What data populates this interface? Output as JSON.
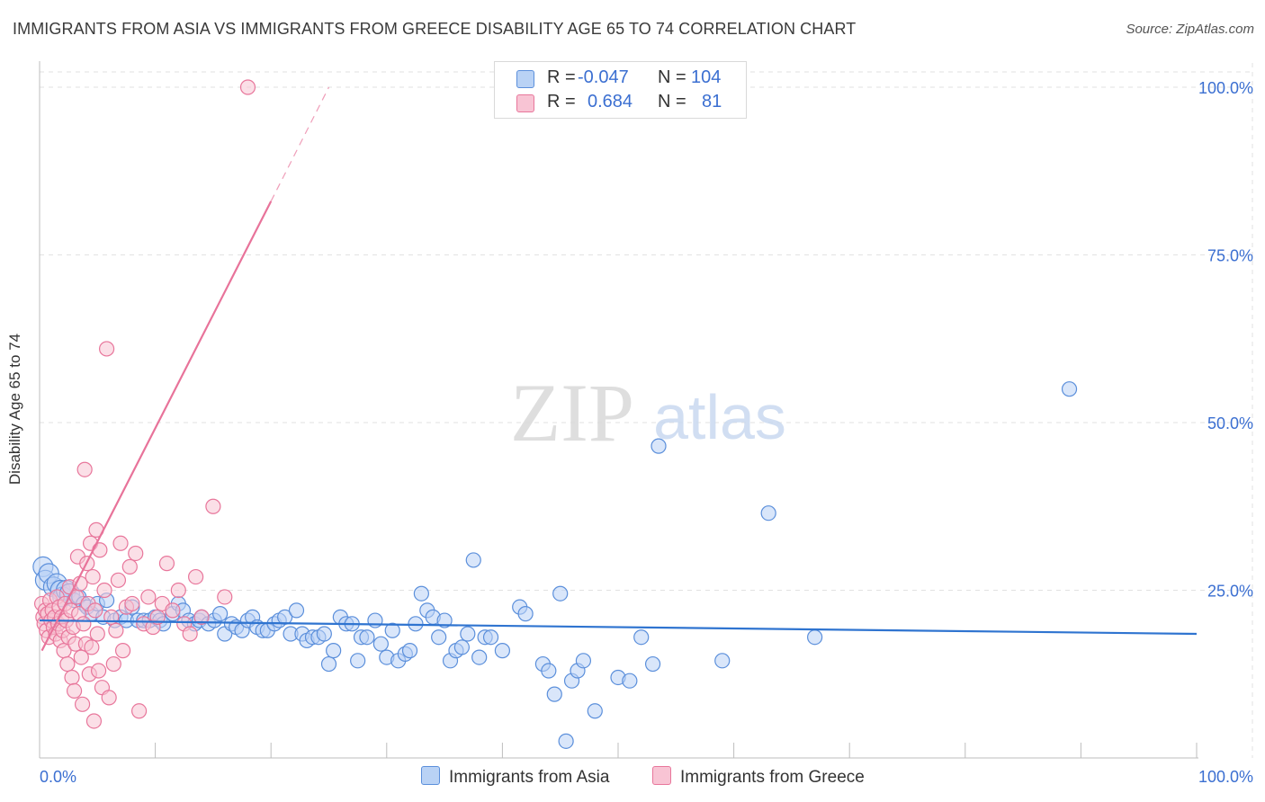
{
  "header": {
    "title": "IMMIGRANTS FROM ASIA VS IMMIGRANTS FROM GREECE DISABILITY AGE 65 TO 74 CORRELATION CHART",
    "source": "Source: ZipAtlas.com"
  },
  "colors": {
    "blue_fill": "#b9d2f5",
    "blue_stroke": "#5b8fdb",
    "blue_line": "#2f74d0",
    "pink_fill": "#f8c4d4",
    "pink_stroke": "#e8769b",
    "pink_line": "#e8739a",
    "grid": "#e2e2e2",
    "axis_text_blue": "#3b6fd1"
  },
  "legend": {
    "r_label": "R =",
    "n_label": "N =",
    "asia": {
      "r": "-0.047",
      "n": "104"
    },
    "greece": {
      "r": "0.684",
      "n": "81"
    }
  },
  "watermark": {
    "zip": "ZIP",
    "atlas": "atlas"
  },
  "chart_data": {
    "type": "scatter",
    "title": "IMMIGRANTS FROM ASIA VS IMMIGRANTS FROM GREECE DISABILITY AGE 65 TO 74 CORRELATION CHART",
    "xlabel": "",
    "ylabel": "Disability Age 65 to 74",
    "xlim": [
      0,
      100
    ],
    "ylim": [
      0,
      100
    ],
    "x_tick_labels": [
      "0.0%",
      "100.0%"
    ],
    "y_tick_labels": [
      "25.0%",
      "50.0%",
      "75.0%",
      "100.0%"
    ],
    "y_ticks": [
      25,
      50,
      75,
      100
    ],
    "legend_position": "bottom-center",
    "series": [
      {
        "name": "Immigrants from Asia",
        "color": "blue",
        "trend": {
          "x0": 0,
          "y0": 20.5,
          "x1": 100,
          "y1": 18.5
        },
        "points": [
          [
            0.3,
            28.5
          ],
          [
            0.5,
            26.5
          ],
          [
            0.8,
            27.5
          ],
          [
            1.2,
            25.5
          ],
          [
            1.5,
            26
          ],
          [
            1.8,
            25
          ],
          [
            2,
            24
          ],
          [
            2.3,
            25
          ],
          [
            2.6,
            24.5
          ],
          [
            3,
            23.5
          ],
          [
            3.4,
            24
          ],
          [
            3.8,
            23
          ],
          [
            4.1,
            22.5
          ],
          [
            4.5,
            21.5
          ],
          [
            5,
            23
          ],
          [
            5.5,
            21
          ],
          [
            5.8,
            23.5
          ],
          [
            6.5,
            20.5
          ],
          [
            7,
            21
          ],
          [
            7.5,
            20.5
          ],
          [
            8,
            22.5
          ],
          [
            8.5,
            20.5
          ],
          [
            9,
            20.5
          ],
          [
            9.5,
            20.5
          ],
          [
            10,
            21
          ],
          [
            10.4,
            20.5
          ],
          [
            10.7,
            20
          ],
          [
            11.5,
            21.5
          ],
          [
            12,
            23
          ],
          [
            12.4,
            22
          ],
          [
            12.9,
            20.5
          ],
          [
            13.4,
            20
          ],
          [
            13.8,
            20.5
          ],
          [
            14,
            21
          ],
          [
            14.6,
            20
          ],
          [
            15.1,
            20.5
          ],
          [
            15.6,
            21.5
          ],
          [
            16,
            18.5
          ],
          [
            16.6,
            20
          ],
          [
            17,
            19.5
          ],
          [
            17.5,
            19
          ],
          [
            18,
            20.5
          ],
          [
            18.4,
            21
          ],
          [
            18.8,
            19.5
          ],
          [
            19.3,
            19
          ],
          [
            19.7,
            19
          ],
          [
            20.3,
            20
          ],
          [
            20.7,
            20.5
          ],
          [
            21.2,
            21
          ],
          [
            21.7,
            18.5
          ],
          [
            22.2,
            22
          ],
          [
            22.7,
            18.5
          ],
          [
            23.1,
            17.5
          ],
          [
            23.6,
            18
          ],
          [
            24.1,
            18
          ],
          [
            24.6,
            18.5
          ],
          [
            25,
            14
          ],
          [
            25.4,
            16
          ],
          [
            26,
            21
          ],
          [
            26.5,
            20
          ],
          [
            27,
            20
          ],
          [
            27.5,
            14.5
          ],
          [
            27.8,
            18
          ],
          [
            28.3,
            18
          ],
          [
            29,
            20.5
          ],
          [
            29.5,
            17
          ],
          [
            30,
            15
          ],
          [
            30.5,
            19
          ],
          [
            31,
            14.5
          ],
          [
            31.6,
            15.5
          ],
          [
            32,
            16
          ],
          [
            32.5,
            20
          ],
          [
            33,
            24.5
          ],
          [
            33.5,
            22
          ],
          [
            34,
            21
          ],
          [
            34.5,
            18
          ],
          [
            35,
            20.5
          ],
          [
            35.5,
            14.5
          ],
          [
            36,
            16
          ],
          [
            36.5,
            16.5
          ],
          [
            37,
            18.5
          ],
          [
            37.5,
            29.5
          ],
          [
            38,
            15
          ],
          [
            38.5,
            18
          ],
          [
            39,
            18
          ],
          [
            40,
            16
          ],
          [
            41.5,
            22.5
          ],
          [
            42,
            21.5
          ],
          [
            43.5,
            14
          ],
          [
            44,
            13
          ],
          [
            44.5,
            9.5
          ],
          [
            45,
            24.5
          ],
          [
            45.5,
            2.5
          ],
          [
            46,
            11.5
          ],
          [
            46.5,
            13
          ],
          [
            47,
            14.5
          ],
          [
            48,
            7
          ],
          [
            50,
            12
          ],
          [
            51,
            11.5
          ],
          [
            52,
            18
          ],
          [
            53,
            14
          ],
          [
            53.5,
            46.5
          ],
          [
            59,
            14.5
          ],
          [
            63,
            36.5
          ],
          [
            67,
            18
          ],
          [
            89,
            55
          ]
        ]
      },
      {
        "name": "Immigrants from Greece",
        "color": "pink",
        "trend": {
          "x0": 0.2,
          "y0": 16,
          "x1": 20,
          "y1": 83,
          "dashed_to": {
            "x": 25,
            "y": 100
          }
        },
        "points": [
          [
            0.2,
            23
          ],
          [
            0.3,
            21
          ],
          [
            0.4,
            20
          ],
          [
            0.5,
            22
          ],
          [
            0.6,
            19
          ],
          [
            0.7,
            21.5
          ],
          [
            0.8,
            18
          ],
          [
            0.9,
            23.5
          ],
          [
            1,
            20.5
          ],
          [
            1.1,
            22
          ],
          [
            1.2,
            19.5
          ],
          [
            1.3,
            21
          ],
          [
            1.4,
            18.5
          ],
          [
            1.5,
            24
          ],
          [
            1.6,
            20
          ],
          [
            1.7,
            22.5
          ],
          [
            1.8,
            17.5
          ],
          [
            1.9,
            21
          ],
          [
            2,
            19
          ],
          [
            2.1,
            16
          ],
          [
            2.2,
            23
          ],
          [
            2.3,
            20.5
          ],
          [
            2.4,
            14
          ],
          [
            2.5,
            18
          ],
          [
            2.6,
            25.5
          ],
          [
            2.7,
            22
          ],
          [
            2.8,
            12
          ],
          [
            2.9,
            19.5
          ],
          [
            3,
            10
          ],
          [
            3.1,
            17
          ],
          [
            3.2,
            24
          ],
          [
            3.3,
            30
          ],
          [
            3.4,
            21.5
          ],
          [
            3.5,
            26
          ],
          [
            3.6,
            15
          ],
          [
            3.7,
            8
          ],
          [
            3.8,
            20
          ],
          [
            3.9,
            43
          ],
          [
            4,
            17
          ],
          [
            4.1,
            29
          ],
          [
            4.2,
            23
          ],
          [
            4.3,
            12.5
          ],
          [
            4.4,
            32
          ],
          [
            4.5,
            16.5
          ],
          [
            4.6,
            27
          ],
          [
            4.7,
            5.5
          ],
          [
            4.8,
            22
          ],
          [
            4.9,
            34
          ],
          [
            5,
            18.5
          ],
          [
            5.1,
            13
          ],
          [
            5.2,
            31
          ],
          [
            5.4,
            10.5
          ],
          [
            5.6,
            25
          ],
          [
            5.8,
            61
          ],
          [
            6,
            9
          ],
          [
            6.2,
            21
          ],
          [
            6.4,
            14
          ],
          [
            6.6,
            19
          ],
          [
            6.8,
            26.5
          ],
          [
            7,
            32
          ],
          [
            7.2,
            16
          ],
          [
            7.5,
            22.5
          ],
          [
            7.8,
            28.5
          ],
          [
            8,
            23
          ],
          [
            8.3,
            30.5
          ],
          [
            8.6,
            7
          ],
          [
            9,
            20
          ],
          [
            9.4,
            24
          ],
          [
            9.8,
            19.5
          ],
          [
            10.2,
            21
          ],
          [
            10.6,
            23
          ],
          [
            11,
            29
          ],
          [
            11.5,
            22
          ],
          [
            12,
            25
          ],
          [
            12.5,
            20
          ],
          [
            13,
            18.5
          ],
          [
            13.5,
            27
          ],
          [
            14,
            21
          ],
          [
            15,
            37.5
          ],
          [
            16,
            24
          ],
          [
            18,
            100
          ]
        ]
      }
    ]
  },
  "bottom_legend": {
    "asia_label": "Immigrants from Asia",
    "greece_label": "Immigrants from Greece"
  }
}
